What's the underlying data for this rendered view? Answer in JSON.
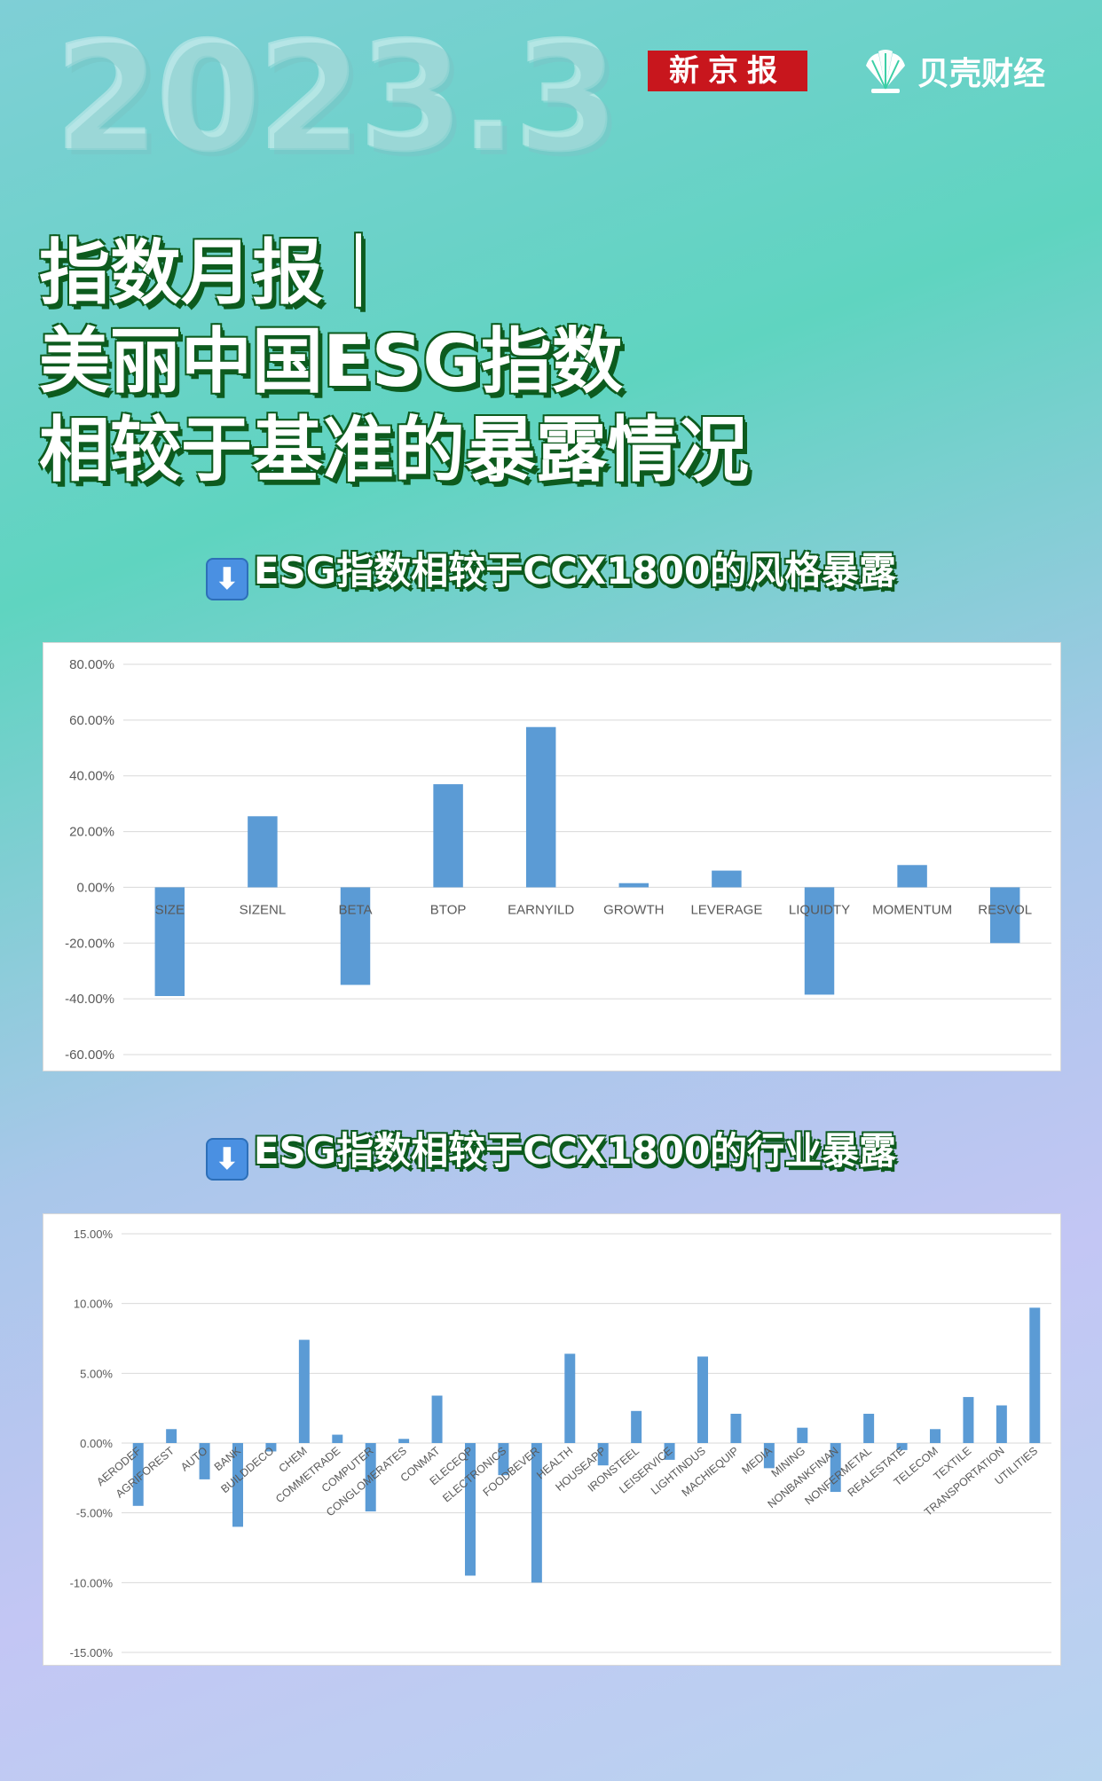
{
  "header": {
    "year_text": "2023.3",
    "logo_xjb": "新京报",
    "logo_beike": "贝壳财经",
    "title_lines": [
      "指数月报｜",
      "美丽中国ESG指数",
      "相较于基准的暴露情况"
    ]
  },
  "sections": [
    {
      "title": "ESG指数相较于CCX1800的风格暴露"
    },
    {
      "title": "ESG指数相较于CCX1800的行业暴露"
    }
  ],
  "colors": {
    "bar": "#5b9bd5",
    "title_shadow": "#0d5b1e",
    "brand_red": "#c8161d"
  },
  "icons": {
    "arrow": "down-arrow-icon",
    "beike_logo": "shell-icon"
  },
  "chart_data": [
    {
      "type": "bar",
      "title": "",
      "xlabel": "",
      "ylabel": "",
      "ylim": [
        -60,
        80
      ],
      "yticks": [
        80,
        60,
        40,
        20,
        0,
        -20,
        -40,
        -60
      ],
      "tick_labels": [
        "80.00%",
        "60.00%",
        "40.00%",
        "20.00%",
        "0.00%",
        "-20.00%",
        "-40.00%",
        "-60.00%"
      ],
      "categories": [
        "SIZE",
        "SIZENL",
        "BETA",
        "BTOP",
        "EARNYILD",
        "GROWTH",
        "LEVERAGE",
        "LIQUIDTY",
        "MOMENTUM",
        "RESVOL"
      ],
      "values": [
        -39,
        25.5,
        -35,
        37,
        57.5,
        1.5,
        6,
        -38.5,
        8,
        -20
      ],
      "grid": true,
      "legend": "none"
    },
    {
      "type": "bar",
      "title": "",
      "xlabel": "",
      "ylabel": "",
      "ylim": [
        -15,
        15
      ],
      "yticks": [
        15,
        10,
        5,
        0,
        -5,
        -10,
        -15
      ],
      "tick_labels": [
        "15.00%",
        "10.00%",
        "5.00%",
        "0.00%",
        "-5.00%",
        "-10.00%",
        "-15.00%"
      ],
      "categories": [
        "AERODEF",
        "AGRIFOREST",
        "AUTO",
        "BANK",
        "BUILDDECO",
        "CHEM",
        "COMMETRADE",
        "COMPUTER",
        "CONGLOMERATES",
        "CONMAT",
        "ELECEQP",
        "ELECTRONICS",
        "FOODBEVER",
        "HEALTH",
        "HOUSEAPP",
        "IRONSTEEL",
        "LEISERVICE",
        "LIGHTINDUS",
        "MACHIEQUIP",
        "MEDIA",
        "MINING",
        "NONBANKFINAN",
        "NONFERMETAL",
        "REALESTATE",
        "TELECOM",
        "TEXTILE",
        "TRANSPORTATION",
        "UTILITIES"
      ],
      "values": [
        -4.5,
        1.0,
        -2.6,
        -6.0,
        -0.6,
        7.4,
        0.6,
        -4.9,
        0.3,
        3.4,
        -9.5,
        -2.3,
        -10.0,
        6.4,
        -1.6,
        2.3,
        -1.2,
        6.2,
        2.1,
        -1.8,
        1.1,
        -3.5,
        2.1,
        -0.5,
        1.0,
        3.3,
        2.7,
        9.7
      ],
      "grid": true,
      "legend": "none"
    }
  ]
}
